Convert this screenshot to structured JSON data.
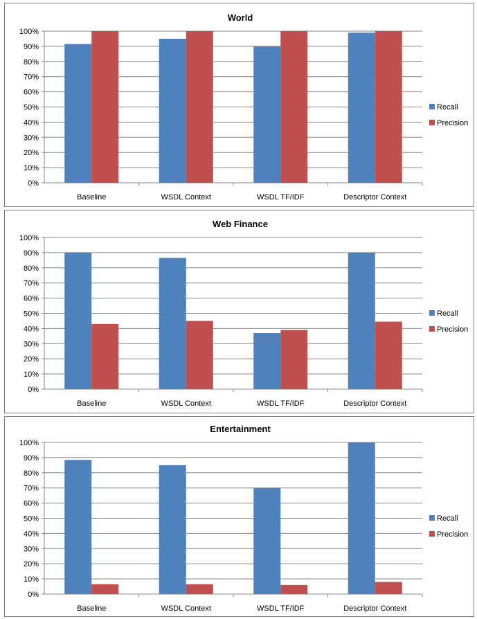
{
  "chart_data": [
    {
      "type": "bar",
      "title": "World",
      "categories": [
        "Baseline",
        "WSDL Context",
        "WSDL TF/IDF",
        "Descriptor Context"
      ],
      "series": [
        {
          "name": "Recall",
          "values": [
            0.915,
            0.95,
            0.9,
            0.99
          ]
        },
        {
          "name": "Precision",
          "values": [
            1.0,
            1.0,
            1.0,
            1.0
          ]
        }
      ],
      "ylim": [
        0,
        1.0
      ],
      "yticks": [
        "0%",
        "10%",
        "20%",
        "30%",
        "40%",
        "50%",
        "60%",
        "70%",
        "80%",
        "90%",
        "100%"
      ],
      "grid": true,
      "legend": "right"
    },
    {
      "type": "bar",
      "title": "Web Finance",
      "categories": [
        "Baseline",
        "WSDL Context",
        "WSDL TF/IDF",
        "Descriptor Context"
      ],
      "series": [
        {
          "name": "Recall",
          "values": [
            0.9,
            0.865,
            0.37,
            0.9
          ]
        },
        {
          "name": "Precision",
          "values": [
            0.43,
            0.45,
            0.39,
            0.445
          ]
        }
      ],
      "ylim": [
        0,
        1.0
      ],
      "yticks": [
        "0%",
        "10%",
        "20%",
        "30%",
        "40%",
        "50%",
        "60%",
        "70%",
        "80%",
        "90%",
        "100%"
      ],
      "grid": true,
      "legend": "right"
    },
    {
      "type": "bar",
      "title": "Entertainment",
      "categories": [
        "Baseline",
        "WSDL Context",
        "WSDL TF/IDF",
        "Descriptor Context"
      ],
      "series": [
        {
          "name": "Recall",
          "values": [
            0.885,
            0.85,
            0.7,
            1.0
          ]
        },
        {
          "name": "Precision",
          "values": [
            0.065,
            0.065,
            0.06,
            0.08
          ]
        }
      ],
      "ylim": [
        0,
        1.0
      ],
      "yticks": [
        "0%",
        "10%",
        "20%",
        "30%",
        "40%",
        "50%",
        "60%",
        "70%",
        "80%",
        "90%",
        "100%"
      ],
      "grid": true,
      "legend": "right"
    }
  ],
  "colors": {
    "Recall": "#4f81bd",
    "Precision": "#c0504d",
    "grid": "#868686"
  }
}
